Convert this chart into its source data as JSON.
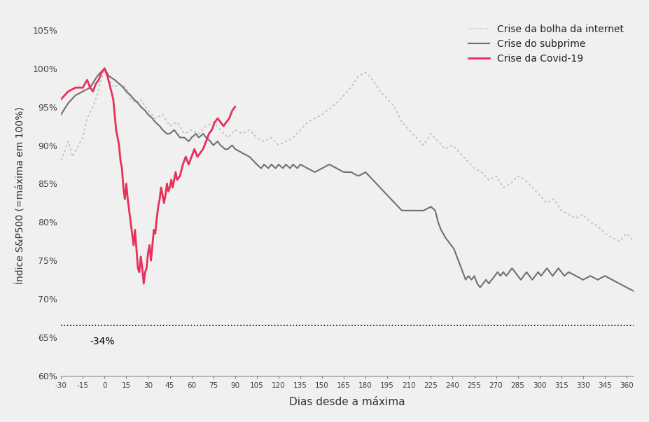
{
  "title": "",
  "xlabel": "Dias desde a máxima",
  "ylabel": "Índice S&P500 (=máxima em 100%)",
  "xlim": [
    -30,
    365
  ],
  "ylim": [
    60,
    107
  ],
  "yticks": [
    60,
    65,
    70,
    75,
    80,
    85,
    90,
    95,
    100,
    105
  ],
  "xticks": [
    -30,
    -15,
    0,
    15,
    30,
    45,
    60,
    75,
    90,
    105,
    120,
    135,
    150,
    165,
    180,
    195,
    210,
    225,
    240,
    255,
    270,
    285,
    300,
    315,
    330,
    345,
    360
  ],
  "hline_y": 66.6,
  "hline_label": "-34%",
  "hline_x": -10,
  "dotcom_color": "#c0c0c0",
  "subprime_color": "#707070",
  "covid_color": "#e8305a",
  "background_color": "#f0f0f0",
  "legend_labels": [
    "Crise da bolha da internet",
    "Crise do subprime",
    "Crise da Covid-19"
  ],
  "dotcom_lw": 1.2,
  "subprime_lw": 1.5,
  "covid_lw": 2.0,
  "dotcom_noise": 0.008,
  "subprime_noise": 0.007,
  "covid_noise": 0.006
}
